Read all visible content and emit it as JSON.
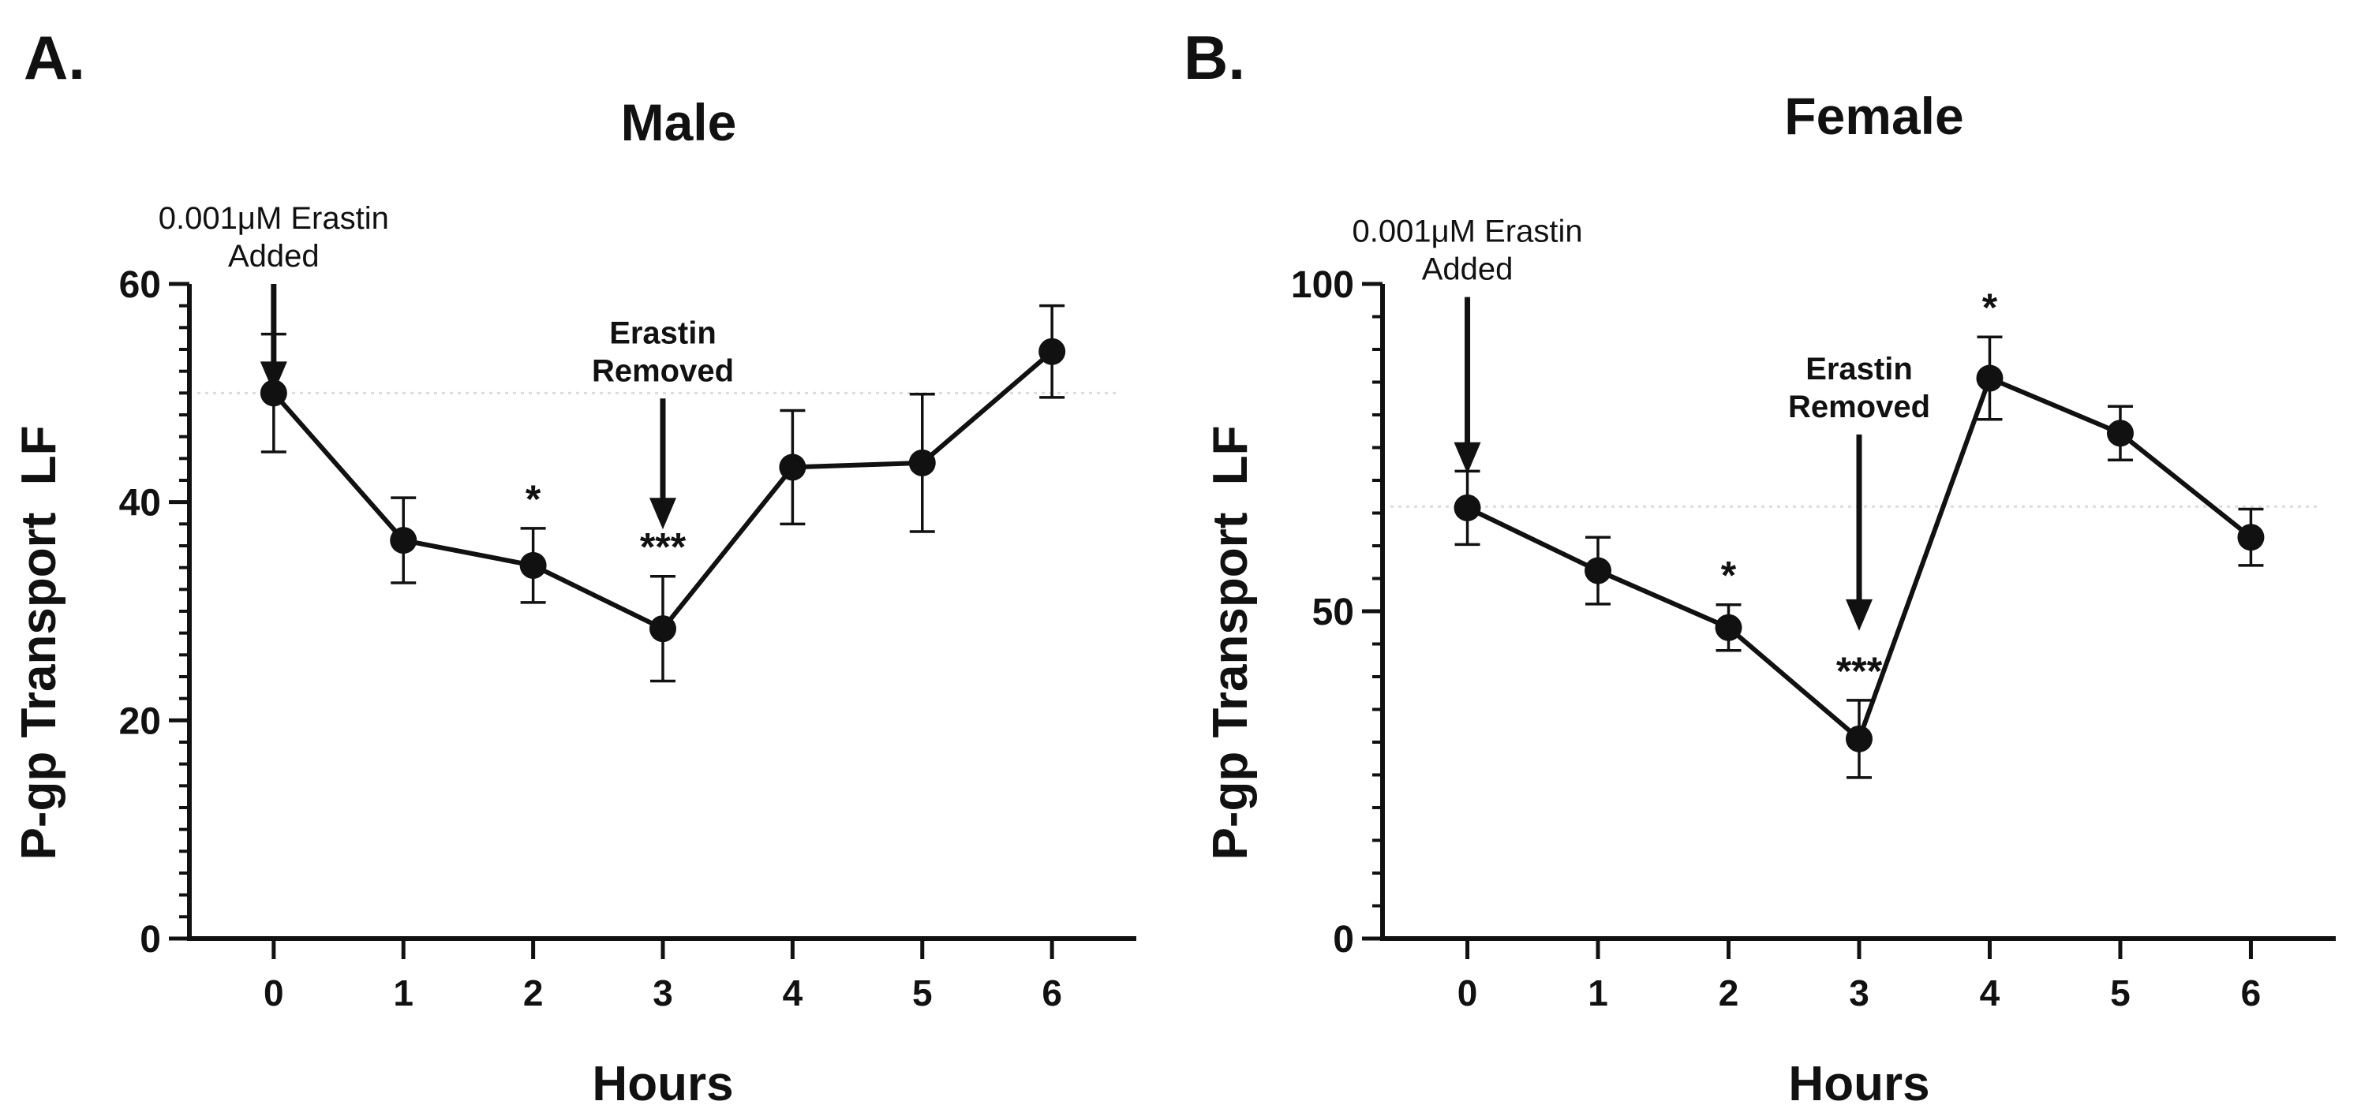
{
  "colors": {
    "ink": "#111111",
    "grid": "#dcdcdc",
    "background": "#ffffff"
  },
  "chart_data": [
    {
      "type": "line",
      "panel_label": "A.",
      "title": "Male",
      "xlabel": "Hours",
      "ylabel": "P-gp Transport  LF",
      "x": [
        0,
        1,
        2,
        3,
        4,
        5,
        6
      ],
      "xlim": [
        -0.65,
        6.65
      ],
      "ylim": [
        0,
        60
      ],
      "y_ticks": [
        0,
        20,
        40,
        60
      ],
      "y_minor_step": 2,
      "gridline_at": 50,
      "series": [
        {
          "name": "P-gp Transport",
          "values": [
            50,
            36.5,
            34.2,
            28.4,
            43.2,
            43.6,
            53.8
          ],
          "errors": [
            5.4,
            3.9,
            3.4,
            4.8,
            5.2,
            6.3,
            4.2
          ]
        }
      ],
      "significance": [
        {
          "x": 2,
          "label": "*"
        },
        {
          "x": 3,
          "label": "***"
        }
      ],
      "annotations": [
        {
          "x": 0,
          "lines": [
            "0.001μM Erastin",
            "Added"
          ],
          "weight": "normal",
          "arrow_from": 60,
          "arrow_to": 50
        },
        {
          "x": 3,
          "lines": [
            "Erastin",
            "Removed"
          ],
          "weight": "bold",
          "arrow_from": 49.5,
          "arrow_to": 37.5
        }
      ]
    },
    {
      "type": "line",
      "panel_label": "B.",
      "title": "Female",
      "xlabel": "Hours",
      "ylabel": "P-gp Transport  LF",
      "x": [
        0,
        1,
        2,
        3,
        4,
        5,
        6
      ],
      "xlim": [
        -0.65,
        6.65
      ],
      "ylim": [
        0,
        100
      ],
      "y_ticks": [
        0,
        50,
        100
      ],
      "y_minor_step": 5,
      "gridline_at": 66,
      "series": [
        {
          "name": "P-gp Transport",
          "values": [
            65.8,
            56.2,
            47.5,
            30.5,
            85.6,
            77.2,
            61.3
          ],
          "errors": [
            5.6,
            5.1,
            3.5,
            5.9,
            6.3,
            4.1,
            4.3
          ]
        }
      ],
      "significance": [
        {
          "x": 2,
          "label": "*"
        },
        {
          "x": 3,
          "label": "***"
        },
        {
          "x": 4,
          "label": "*"
        }
      ],
      "annotations": [
        {
          "x": 0,
          "lines": [
            "0.001μM Erastin",
            "Added"
          ],
          "weight": "normal",
          "arrow_from": 98,
          "arrow_to": 71
        },
        {
          "x": 3,
          "lines": [
            "Erastin",
            "Removed"
          ],
          "weight": "bold",
          "arrow_from": 77,
          "arrow_to": 47
        }
      ]
    }
  ]
}
